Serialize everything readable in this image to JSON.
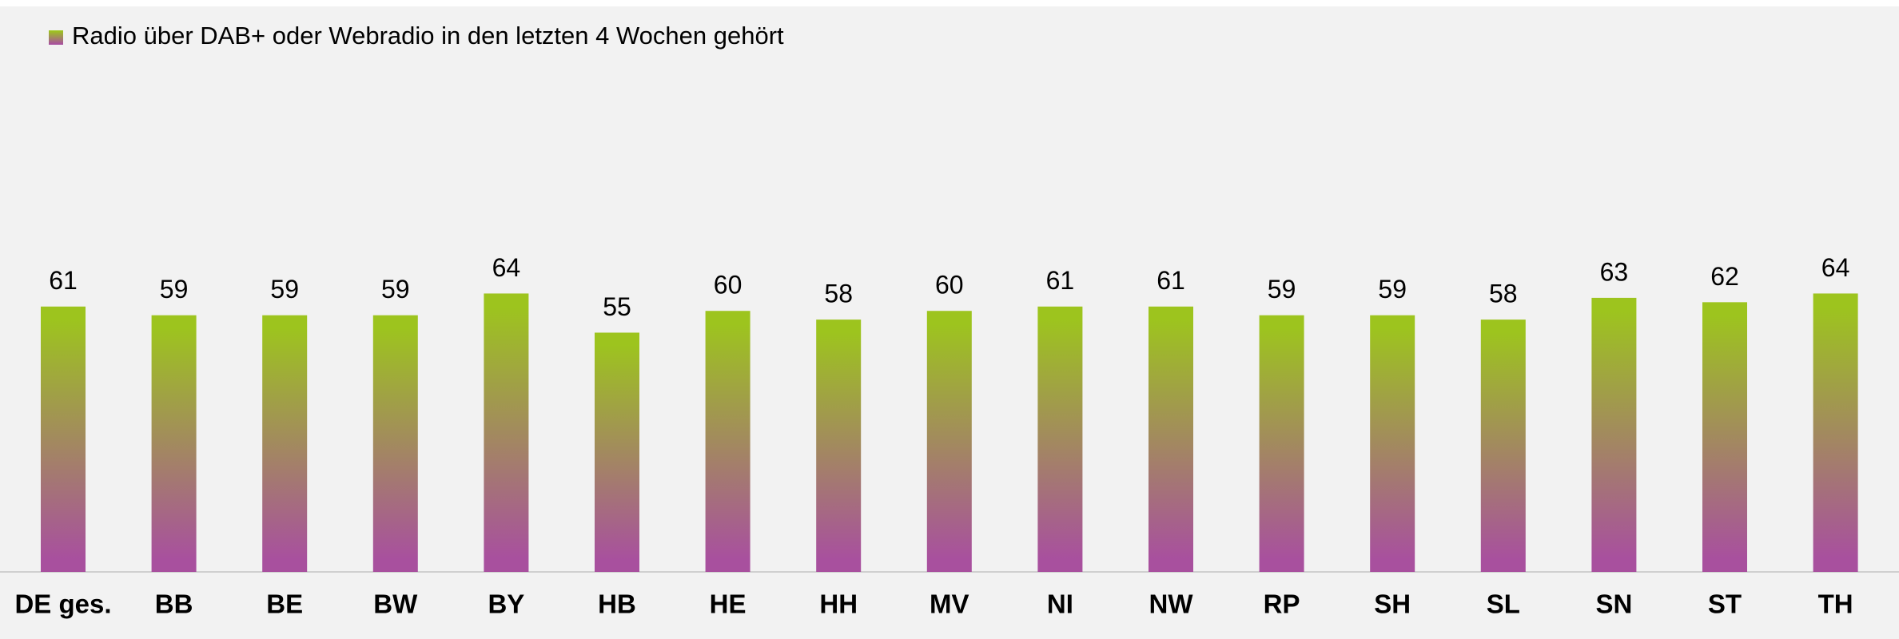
{
  "chart_data": {
    "type": "bar",
    "legend": "Radio über DAB+ oder Webradio in den letzten 4 Wochen gehört",
    "categories": [
      "DE ges.",
      "BB",
      "BE",
      "BW",
      "BY",
      "HB",
      "HE",
      "HH",
      "MV",
      "NI",
      "NW",
      "RP",
      "SH",
      "SL",
      "SN",
      "ST",
      "TH"
    ],
    "values": [
      61,
      59,
      59,
      59,
      64,
      55,
      60,
      58,
      60,
      61,
      61,
      59,
      59,
      58,
      63,
      62,
      64
    ],
    "gradient": [
      "#9dc41e",
      "#a8509e"
    ],
    "ylim": [
      0,
      130
    ]
  }
}
